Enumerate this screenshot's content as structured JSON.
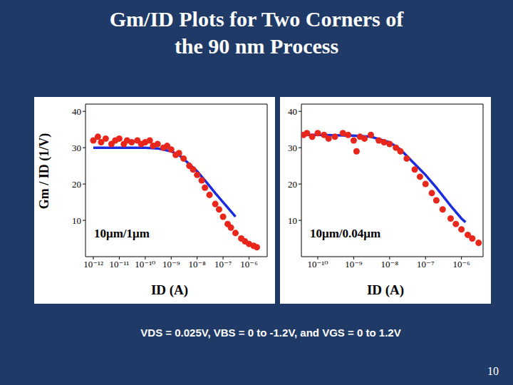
{
  "title": [
    "Gm/ID Plots for Two Corners of",
    "the 90 nm Process"
  ],
  "note": "VDS = 0.025V, VBS = 0 to -1.2V, and VGS = 0 to 1.2V",
  "page": "10",
  "chart_data": [
    {
      "type": "scatter",
      "annotation": "10μm/1μm",
      "xlabel": "ID (A)",
      "ylabel": "Gm / ID (1/V)",
      "log": "x",
      "xlim": [
        5e-13,
        5e-06
      ],
      "ylim": [
        0,
        42
      ],
      "xticks": [
        {
          "value": 1e-12,
          "label": "10⁻¹²"
        },
        {
          "value": 1e-11,
          "label": "10⁻¹¹"
        },
        {
          "value": 1e-10,
          "label": "10⁻¹⁰"
        },
        {
          "value": 1e-09,
          "label": "10⁻⁹"
        },
        {
          "value": 1e-08,
          "label": "10⁻⁸"
        },
        {
          "value": 1e-07,
          "label": "10⁻⁷"
        },
        {
          "value": 1e-06,
          "label": "10⁻⁶"
        }
      ],
      "yticks": [
        10,
        20,
        30,
        40
      ],
      "series": [
        {
          "type": "scatter",
          "color": "#e8261c",
          "marker": "circle",
          "x": [
            1e-12,
            1.5e-12,
            2e-12,
            3e-12,
            5e-12,
            7e-12,
            1e-11,
            1.5e-11,
            2e-11,
            3e-11,
            5e-11,
            7e-11,
            1e-10,
            1.5e-10,
            2e-10,
            3e-10,
            5e-10,
            7e-10,
            1e-09,
            1.5e-09,
            2e-09,
            3e-09,
            5e-09,
            7e-09,
            1e-08,
            1.5e-08,
            2e-08,
            3e-08,
            5e-08,
            7e-08,
            1e-07,
            1.5e-07,
            2e-07,
            3e-07,
            5e-07,
            7e-07,
            1e-06,
            1.5e-06,
            2e-06
          ],
          "values": [
            32,
            33,
            31.5,
            32.5,
            31,
            32,
            32.5,
            31,
            32,
            31.5,
            32,
            31,
            31.5,
            32,
            30.5,
            31,
            30,
            30.5,
            29.5,
            28,
            28.5,
            27,
            25,
            24,
            22.5,
            21,
            19,
            17,
            14.5,
            13,
            11,
            9,
            8,
            6.5,
            5,
            4.2,
            3.5,
            3,
            2.6
          ]
        },
        {
          "type": "line",
          "color": "#1a2be0",
          "line_style": "solid",
          "x": [
            1e-12,
            1e-11,
            1e-10,
            3e-10,
            1e-09,
            2e-09,
            5e-09,
            1e-08,
            2e-08,
            5e-08,
            1e-07,
            2e-07,
            3e-07
          ],
          "values": [
            30,
            30,
            30,
            29.8,
            29,
            28,
            25.5,
            23.5,
            21,
            17.5,
            15,
            12.5,
            11
          ]
        }
      ]
    },
    {
      "type": "scatter",
      "annotation": "10μm/0.04μm",
      "xlabel": "ID (A)",
      "log": "x",
      "xlim": [
        3.5e-11,
        4e-06
      ],
      "ylim": [
        0,
        42
      ],
      "xticks": [
        {
          "value": 1e-10,
          "label": "10⁻¹⁰"
        },
        {
          "value": 1e-09,
          "label": "10⁻⁹"
        },
        {
          "value": 1e-08,
          "label": "10⁻⁸"
        },
        {
          "value": 1e-07,
          "label": "10⁻⁷"
        },
        {
          "value": 1e-06,
          "label": "10⁻⁶"
        }
      ],
      "yticks": [
        10,
        20,
        30,
        40
      ],
      "series": [
        {
          "type": "scatter",
          "color": "#e8261c",
          "marker": "circle",
          "x": [
            4e-11,
            5e-11,
            7e-11,
            1e-10,
            1.2e-09,
            1.5e-10,
            2e-10,
            3e-10,
            5e-10,
            7e-10,
            1e-09,
            1.5e-09,
            2e-09,
            3e-09,
            5e-09,
            7e-09,
            1e-08,
            1.5e-08,
            2e-08,
            3e-08,
            5e-08,
            7e-08,
            1e-07,
            1.5e-07,
            2e-07,
            3e-07,
            5e-07,
            7e-07,
            1e-06,
            1.5e-06,
            2e-06,
            3e-06
          ],
          "values": [
            33.5,
            34,
            33,
            34,
            29,
            33.5,
            32.5,
            33,
            34,
            33.5,
            32,
            33,
            32.5,
            33.5,
            32,
            31.5,
            31,
            30,
            29,
            27,
            24,
            22,
            20,
            17.5,
            15.5,
            13,
            10.5,
            9,
            7.5,
            6,
            5,
            3.8
          ]
        },
        {
          "type": "line",
          "color": "#1a2be0",
          "line_style": "solid",
          "x": [
            4e-11,
            1e-10,
            1e-09,
            3e-09,
            1e-08,
            2e-08,
            5e-08,
            1e-07,
            2e-07,
            5e-07,
            1e-06,
            1.3e-06
          ],
          "values": [
            33.5,
            33.5,
            33.3,
            33,
            31.5,
            29.5,
            25.5,
            22.5,
            19,
            14,
            10.5,
            9.5
          ]
        }
      ]
    }
  ]
}
